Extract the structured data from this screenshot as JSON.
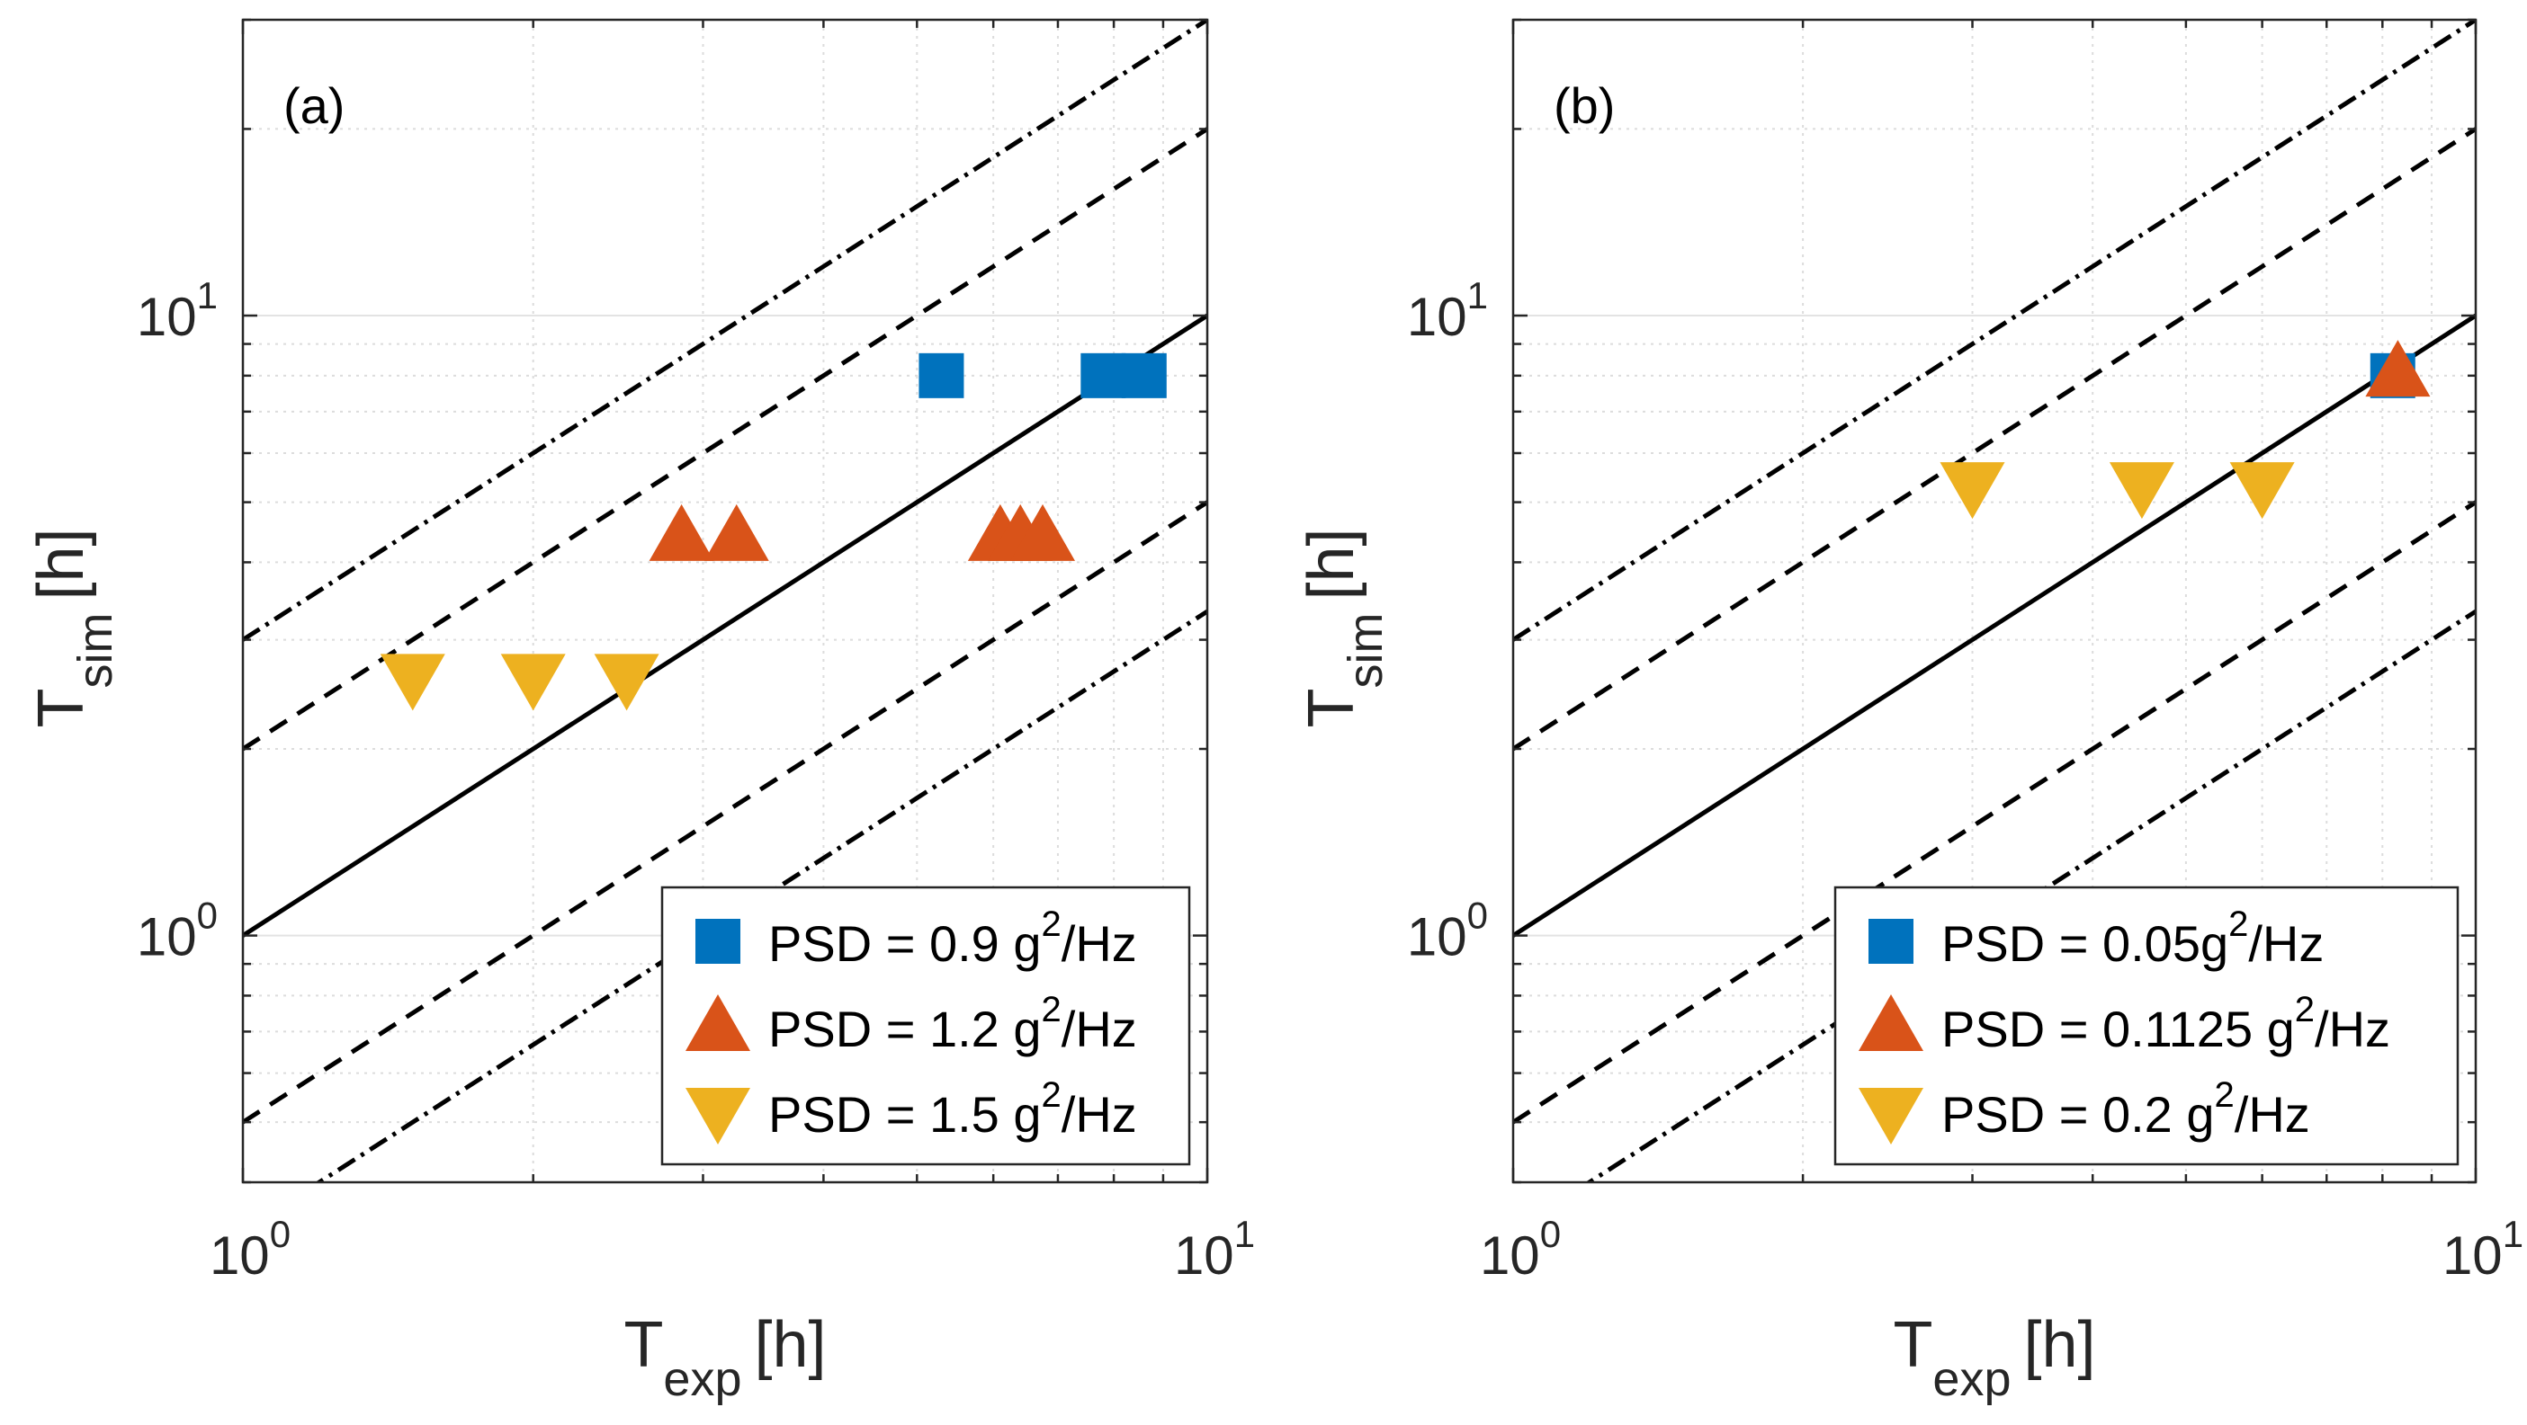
{
  "chart_data": [
    {
      "type": "scatter",
      "panel": "(a)",
      "xscale": "log",
      "yscale": "log",
      "xlim": [
        1,
        10
      ],
      "ylim": [
        0.4,
        30
      ],
      "xlabel_main": "T",
      "xlabel_sub": "exp",
      "xlabel_unit": "[h]",
      "ylabel_main": "T",
      "ylabel_sub": "sim",
      "ylabel_unit": "[h]",
      "xticks": [
        {
          "base": "10",
          "exp": "0",
          "value": 1
        },
        {
          "base": "10",
          "exp": "1",
          "value": 10
        }
      ],
      "yticks": [
        {
          "base": "10",
          "exp": "0",
          "value": 1
        },
        {
          "base": "10",
          "exp": "1",
          "value": 10
        }
      ],
      "grid": true,
      "reference_lines": [
        {
          "factor": 1,
          "style": "solid"
        },
        {
          "factor": 2,
          "style": "dashed"
        },
        {
          "factor": 0.5,
          "style": "dashed"
        },
        {
          "factor": 3,
          "style": "dashdot"
        },
        {
          "factor": 0.3333,
          "style": "dashdot"
        }
      ],
      "legend_position": "bottom-right",
      "series": [
        {
          "name": "PSD = 0.9 g",
          "sup": "2",
          "suffix": "/Hz",
          "marker": "square",
          "color": "#0072BD",
          "x": [
            5.3,
            7.8,
            8.6
          ],
          "y": [
            8.0,
            8.0,
            8.0
          ]
        },
        {
          "name": "PSD = 1.2 g",
          "sup": "2",
          "suffix": "/Hz",
          "marker": "triangle-up",
          "color": "#D95319",
          "x": [
            2.85,
            3.25,
            6.1,
            6.4,
            6.75
          ],
          "y": [
            4.4,
            4.4,
            4.4,
            4.4,
            4.4
          ]
        },
        {
          "name": "PSD = 1.5 g",
          "sup": "2",
          "suffix": "/Hz",
          "marker": "triangle-down",
          "color": "#EDB120",
          "x": [
            1.5,
            2.0,
            2.5
          ],
          "y": [
            2.6,
            2.6,
            2.6
          ]
        }
      ]
    },
    {
      "type": "scatter",
      "panel": "(b)",
      "xscale": "log",
      "yscale": "log",
      "xlim": [
        1,
        10
      ],
      "ylim": [
        0.4,
        30
      ],
      "xlabel_main": "T",
      "xlabel_sub": "exp",
      "xlabel_unit": "[h]",
      "ylabel_main": "T",
      "ylabel_sub": "sim",
      "ylabel_unit": "[h]",
      "xticks": [
        {
          "base": "10",
          "exp": "0",
          "value": 1
        },
        {
          "base": "10",
          "exp": "1",
          "value": 10
        }
      ],
      "yticks": [
        {
          "base": "10",
          "exp": "0",
          "value": 1
        },
        {
          "base": "10",
          "exp": "1",
          "value": 10
        }
      ],
      "grid": true,
      "reference_lines": [
        {
          "factor": 1,
          "style": "solid"
        },
        {
          "factor": 2,
          "style": "dashed"
        },
        {
          "factor": 0.5,
          "style": "dashed"
        },
        {
          "factor": 3,
          "style": "dashdot"
        },
        {
          "factor": 0.3333,
          "style": "dashdot"
        }
      ],
      "legend_position": "bottom-right",
      "series": [
        {
          "name": "PSD = 0.05g",
          "sup": "2",
          "suffix": "/Hz",
          "marker": "square",
          "color": "#0072BD",
          "x": [
            8.2
          ],
          "y": [
            8.0
          ]
        },
        {
          "name": "PSD = 0.1125 g",
          "sup": "2",
          "suffix": "/Hz",
          "marker": "triangle-up",
          "color": "#D95319",
          "x": [
            8.3
          ],
          "y": [
            8.1
          ]
        },
        {
          "name": "PSD = 0.2 g",
          "sup": "2",
          "suffix": "/Hz",
          "marker": "triangle-down",
          "color": "#EDB120",
          "x": [
            3.0,
            4.5,
            6.0
          ],
          "y": [
            5.3,
            5.3,
            5.3
          ]
        }
      ]
    }
  ]
}
